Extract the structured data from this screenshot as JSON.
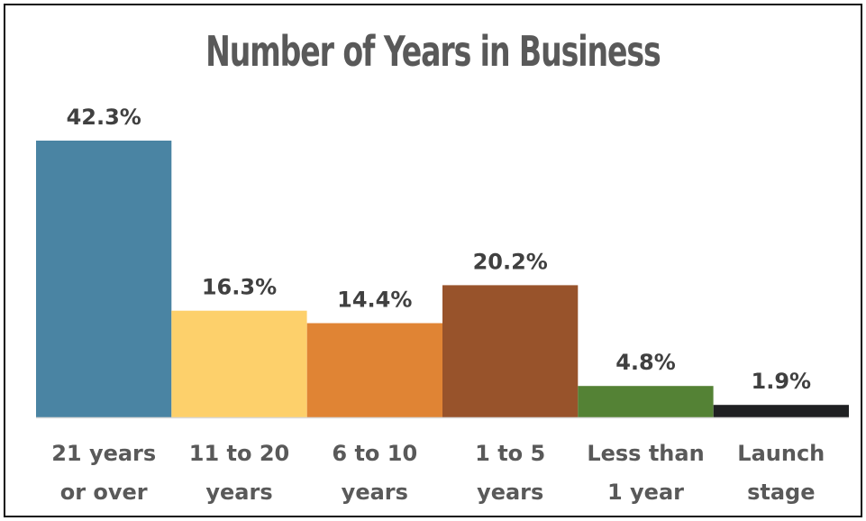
{
  "chart_data": {
    "type": "bar",
    "title": "Number of Years in Business",
    "categories": [
      [
        "21 years",
        "or over"
      ],
      [
        "11 to 20",
        "years"
      ],
      [
        "6 to 10",
        "years"
      ],
      [
        "1 to 5",
        "years"
      ],
      [
        "Less than",
        "1 year"
      ],
      [
        "Launch",
        "stage"
      ]
    ],
    "values": [
      42.3,
      16.3,
      14.4,
      20.2,
      4.8,
      1.9
    ],
    "value_labels": [
      "42.3%",
      "16.3%",
      "14.4%",
      "20.2%",
      "4.8%",
      "1.9%"
    ],
    "colors": [
      "#4a84a3",
      "#fdd06b",
      "#e08434",
      "#98532b",
      "#548235",
      "#1f2022"
    ],
    "xlabel": "",
    "ylabel": "",
    "ylim": [
      0,
      42.3
    ],
    "grid": false,
    "legend": "none"
  }
}
